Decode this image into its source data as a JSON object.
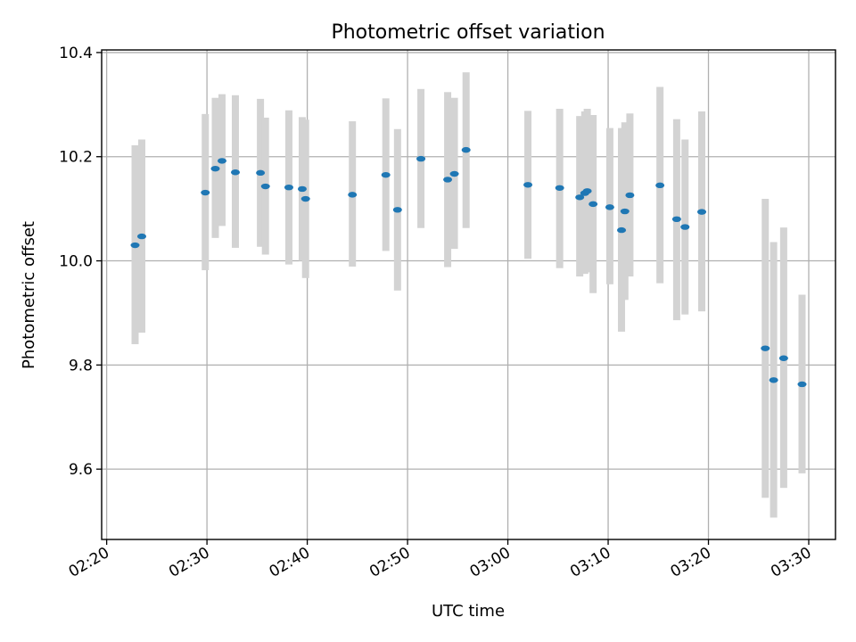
{
  "chart_data": {
    "type": "scatter",
    "title": "Photometric offset variation",
    "xlabel": "UTC time",
    "ylabel": "Photometric offset",
    "grid": true,
    "x_ticks": [
      "02:20",
      "02:30",
      "02:40",
      "02:50",
      "03:00",
      "03:10",
      "03:20",
      "03:30"
    ],
    "y_ticks": [
      "9.6",
      "9.8",
      "10.0",
      "10.2",
      "10.4"
    ],
    "xlim": [
      "02:19:30",
      "03:32:40"
    ],
    "ylim": [
      9.465,
      10.405
    ],
    "colors": {
      "marker": "#1f77b4",
      "errorbar": "#d3d3d3"
    },
    "points": [
      {
        "t": "02:22:50",
        "y": 10.03,
        "lo": 9.84,
        "hi": 10.222
      },
      {
        "t": "02:23:30",
        "y": 10.047,
        "lo": 9.862,
        "hi": 10.233
      },
      {
        "t": "02:29:50",
        "y": 10.131,
        "lo": 9.982,
        "hi": 10.282
      },
      {
        "t": "02:30:50",
        "y": 10.177,
        "lo": 10.044,
        "hi": 10.313
      },
      {
        "t": "02:31:30",
        "y": 10.192,
        "lo": 10.067,
        "hi": 10.32
      },
      {
        "t": "02:32:50",
        "y": 10.17,
        "lo": 10.025,
        "hi": 10.318
      },
      {
        "t": "02:35:20",
        "y": 10.169,
        "lo": 10.027,
        "hi": 10.311
      },
      {
        "t": "02:35:50",
        "y": 10.143,
        "lo": 10.012,
        "hi": 10.275
      },
      {
        "t": "02:38:10",
        "y": 10.141,
        "lo": 9.993,
        "hi": 10.289
      },
      {
        "t": "02:39:30",
        "y": 10.138,
        "lo": 10.0,
        "hi": 10.276
      },
      {
        "t": "02:39:50",
        "y": 10.119,
        "lo": 9.967,
        "hi": 10.271
      },
      {
        "t": "02:44:30",
        "y": 10.127,
        "lo": 9.989,
        "hi": 10.268
      },
      {
        "t": "02:47:50",
        "y": 10.165,
        "lo": 10.019,
        "hi": 10.312
      },
      {
        "t": "02:49:00",
        "y": 10.098,
        "lo": 9.943,
        "hi": 10.253
      },
      {
        "t": "02:51:20",
        "y": 10.196,
        "lo": 10.063,
        "hi": 10.33
      },
      {
        "t": "02:54:00",
        "y": 10.156,
        "lo": 9.988,
        "hi": 10.324
      },
      {
        "t": "02:54:40",
        "y": 10.167,
        "lo": 10.023,
        "hi": 10.313
      },
      {
        "t": "02:55:50",
        "y": 10.213,
        "lo": 10.063,
        "hi": 10.362
      },
      {
        "t": "03:02:00",
        "y": 10.146,
        "lo": 10.004,
        "hi": 10.288
      },
      {
        "t": "03:05:10",
        "y": 10.14,
        "lo": 9.986,
        "hi": 10.292
      },
      {
        "t": "03:07:10",
        "y": 10.122,
        "lo": 9.97,
        "hi": 10.278
      },
      {
        "t": "03:07:40",
        "y": 10.13,
        "lo": 9.975,
        "hi": 10.287
      },
      {
        "t": "03:07:55",
        "y": 10.134,
        "lo": 9.978,
        "hi": 10.292
      },
      {
        "t": "03:08:30",
        "y": 10.109,
        "lo": 9.938,
        "hi": 10.28
      },
      {
        "t": "03:10:10",
        "y": 10.103,
        "lo": 9.955,
        "hi": 10.255
      },
      {
        "t": "03:11:20",
        "y": 10.059,
        "lo": 9.864,
        "hi": 10.255
      },
      {
        "t": "03:11:40",
        "y": 10.095,
        "lo": 9.925,
        "hi": 10.266
      },
      {
        "t": "03:12:10",
        "y": 10.126,
        "lo": 9.97,
        "hi": 10.283
      },
      {
        "t": "03:15:10",
        "y": 10.145,
        "lo": 9.957,
        "hi": 10.334
      },
      {
        "t": "03:16:50",
        "y": 10.08,
        "lo": 9.886,
        "hi": 10.272
      },
      {
        "t": "03:17:40",
        "y": 10.065,
        "lo": 9.897,
        "hi": 10.233
      },
      {
        "t": "03:19:20",
        "y": 10.094,
        "lo": 9.903,
        "hi": 10.287
      },
      {
        "t": "03:25:40",
        "y": 9.832,
        "lo": 9.545,
        "hi": 10.119
      },
      {
        "t": "03:26:30",
        "y": 9.771,
        "lo": 9.507,
        "hi": 10.036
      },
      {
        "t": "03:27:30",
        "y": 9.813,
        "lo": 9.564,
        "hi": 10.064
      },
      {
        "t": "03:29:20",
        "y": 9.763,
        "lo": 9.592,
        "hi": 9.935
      }
    ]
  }
}
